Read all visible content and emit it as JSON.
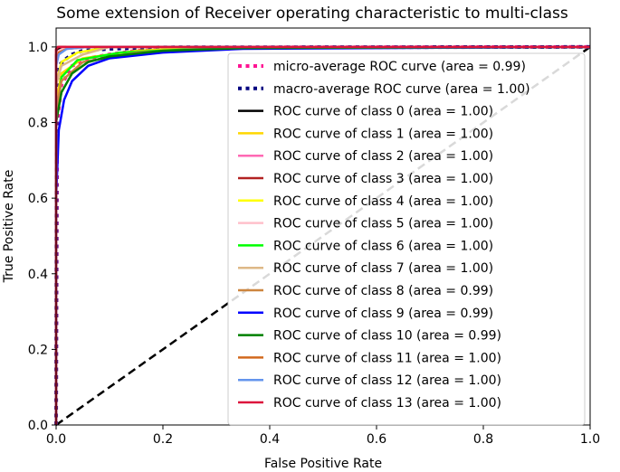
{
  "chart_data": {
    "type": "line",
    "title": "Some extension of Receiver operating characteristic to multi-class",
    "xlabel": "False Positive Rate",
    "ylabel": "True Positive Rate",
    "xlim": [
      0.0,
      1.0
    ],
    "ylim": [
      0.0,
      1.05
    ],
    "xticks": [
      "0.0",
      "0.2",
      "0.4",
      "0.6",
      "0.8",
      "1.0"
    ],
    "yticks": [
      "0.0",
      "0.2",
      "0.4",
      "0.6",
      "0.8",
      "1.0"
    ],
    "grid": false,
    "legend_position": "center-right",
    "series": [
      {
        "name": "micro-average ROC curve (area = 0.99)",
        "color": "#ff1493",
        "style": "dotted",
        "x": [
          0,
          0.002,
          0.01,
          0.03,
          0.06,
          0.1,
          0.15,
          0.25,
          0.4,
          1.0
        ],
        "y": [
          0,
          0.8,
          0.9,
          0.95,
          0.97,
          0.98,
          0.99,
          0.995,
          0.999,
          1.0
        ]
      },
      {
        "name": "macro-average ROC curve (area = 1.00)",
        "color": "#000080",
        "style": "dotted",
        "x": [
          0,
          0.001,
          0.005,
          0.015,
          0.03,
          0.05,
          0.1,
          0.2,
          1.0
        ],
        "y": [
          0,
          0.9,
          0.95,
          0.965,
          0.98,
          0.99,
          0.995,
          0.999,
          1.0
        ]
      },
      {
        "name": "ROC curve of class 0 (area = 1.00)",
        "color": "#000000",
        "style": "solid",
        "x": [
          0,
          0.0,
          0.005,
          0.02,
          1.0
        ],
        "y": [
          0,
          0.98,
          0.995,
          1.0,
          1.0
        ]
      },
      {
        "name": "ROC curve of class 1 (area = 1.00)",
        "color": "#ffd700",
        "style": "solid",
        "x": [
          0,
          0.0,
          0.01,
          0.05,
          0.15,
          0.3,
          1.0
        ],
        "y": [
          0,
          0.85,
          0.93,
          0.97,
          0.99,
          1.0,
          1.0
        ]
      },
      {
        "name": "ROC curve of class 2 (area = 1.00)",
        "color": "#ff69b4",
        "style": "solid",
        "x": [
          0,
          0.0,
          0.005,
          0.02,
          0.05,
          1.0
        ],
        "y": [
          0,
          0.97,
          0.99,
          0.995,
          1.0,
          1.0
        ]
      },
      {
        "name": "ROC curve of class 3 (area = 1.00)",
        "color": "#b22222",
        "style": "solid",
        "x": [
          0,
          0.0,
          0.005,
          1.0
        ],
        "y": [
          0,
          0.995,
          1.0,
          1.0
        ]
      },
      {
        "name": "ROC curve of class 4 (area = 1.00)",
        "color": "#ffff00",
        "style": "solid",
        "x": [
          0,
          0.0,
          0.01,
          0.04,
          0.1,
          1.0
        ],
        "y": [
          0,
          0.9,
          0.96,
          0.985,
          1.0,
          1.0
        ]
      },
      {
        "name": "ROC curve of class 5 (area = 1.00)",
        "color": "#ffc0cb",
        "style": "solid",
        "x": [
          0,
          0.0,
          0.005,
          0.02,
          1.0
        ],
        "y": [
          0,
          0.96,
          0.99,
          1.0,
          1.0
        ]
      },
      {
        "name": "ROC curve of class 6 (area = 1.00)",
        "color": "#00ff00",
        "style": "solid",
        "x": [
          0,
          0.0,
          0.01,
          0.04,
          0.12,
          0.3,
          1.0
        ],
        "y": [
          0,
          0.8,
          0.92,
          0.965,
          0.985,
          0.997,
          1.0
        ]
      },
      {
        "name": "ROC curve of class 7 (area = 1.00)",
        "color": "#deb887",
        "style": "solid",
        "x": [
          0,
          0.0,
          0.01,
          0.05,
          0.1,
          1.0
        ],
        "y": [
          0,
          0.9,
          0.95,
          0.98,
          1.0,
          1.0
        ]
      },
      {
        "name": "ROC curve of class 8 (area = 0.99)",
        "color": "#cd853f",
        "style": "solid",
        "x": [
          0,
          0.0,
          0.01,
          0.05,
          0.15,
          0.3,
          1.0
        ],
        "y": [
          0,
          0.83,
          0.91,
          0.96,
          0.985,
          0.997,
          1.0
        ]
      },
      {
        "name": "ROC curve of class 9 (area = 0.99)",
        "color": "#0000ff",
        "style": "solid",
        "x": [
          0,
          0.0,
          0.005,
          0.015,
          0.03,
          0.06,
          0.1,
          0.2,
          0.35,
          1.0
        ],
        "y": [
          0,
          0.6,
          0.78,
          0.86,
          0.91,
          0.95,
          0.97,
          0.985,
          0.995,
          1.0
        ]
      },
      {
        "name": "ROC curve of class 10 (area = 0.99)",
        "color": "#008000",
        "style": "solid",
        "x": [
          0,
          0.0,
          0.01,
          0.03,
          0.06,
          0.1,
          0.2,
          0.35,
          1.0
        ],
        "y": [
          0,
          0.8,
          0.88,
          0.93,
          0.96,
          0.975,
          0.99,
          0.997,
          1.0
        ]
      },
      {
        "name": "ROC curve of class 11 (area = 1.00)",
        "color": "#d2691e",
        "style": "solid",
        "x": [
          0,
          0.0,
          0.005,
          0.02,
          0.06,
          1.0
        ],
        "y": [
          0,
          0.96,
          0.985,
          0.995,
          1.0,
          1.0
        ]
      },
      {
        "name": "ROC curve of class 12 (area = 1.00)",
        "color": "#6495ed",
        "style": "solid",
        "x": [
          0,
          0.0,
          0.005,
          0.02,
          0.06,
          1.0
        ],
        "y": [
          0,
          0.95,
          0.98,
          0.995,
          1.0,
          1.0
        ]
      },
      {
        "name": "ROC curve of class 13 (area = 1.00)",
        "color": "#dc143c",
        "style": "solid",
        "x": [
          0,
          0.0,
          0.003,
          1.0
        ],
        "y": [
          0,
          0.995,
          1.0,
          1.0
        ]
      }
    ],
    "reference_line": {
      "color": "#000000",
      "style": "dashed",
      "x": [
        0,
        1
      ],
      "y": [
        0,
        1
      ]
    }
  }
}
